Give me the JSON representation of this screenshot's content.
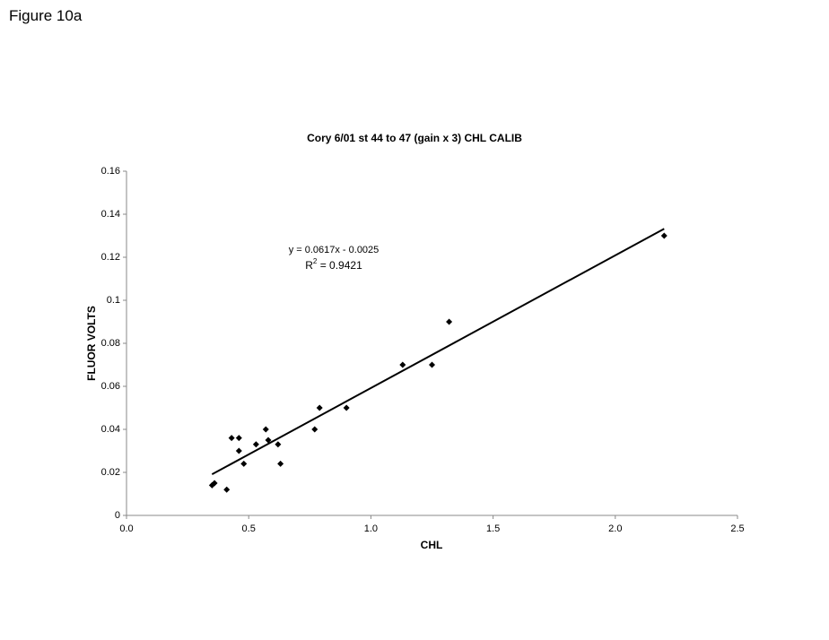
{
  "figure_label": "Figure 10a",
  "chart_data": {
    "type": "scatter",
    "title": "Cory 6/01 st 44 to 47 (gain x 3) CHL CALIB",
    "x_label": "CHL",
    "y_label": "FLUOR VOLTS",
    "color": "#000000",
    "xlim": [
      0,
      2.5
    ],
    "ylim": [
      0,
      0.16
    ],
    "xticks": [
      {
        "value": 0,
        "label": "0.0"
      },
      0.5,
      {
        "value": 1,
        "label": "1.0"
      },
      1.5,
      {
        "value": 2,
        "label": "2.0"
      },
      2.5
    ],
    "yticks": [
      0,
      0.02,
      0.04,
      0.06,
      0.08,
      0.1,
      0.12,
      0.14,
      0.16
    ],
    "x": [
      0.35,
      0.36,
      0.41,
      0.43,
      0.46,
      0.46,
      0.48,
      0.53,
      0.57,
      0.58,
      0.62,
      0.63,
      0.77,
      0.79,
      0.9,
      1.13,
      1.25,
      1.32,
      2.2
    ],
    "values": [
      0.014,
      0.015,
      0.012,
      0.036,
      0.036,
      0.03,
      0.024,
      0.033,
      0.04,
      0.035,
      0.033,
      0.024,
      0.04,
      0.05,
      0.05,
      0.07,
      0.07,
      0.09,
      0.13
    ],
    "trendline": {
      "slope": 0.0617,
      "intercept": -0.0025,
      "x_range": [
        0.35,
        2.2
      ]
    },
    "equation": "y = 0.0617x - 0.0025",
    "r_squared": {
      "symbol": "R",
      "exponent": "2",
      "text": " = 0.9421"
    }
  }
}
